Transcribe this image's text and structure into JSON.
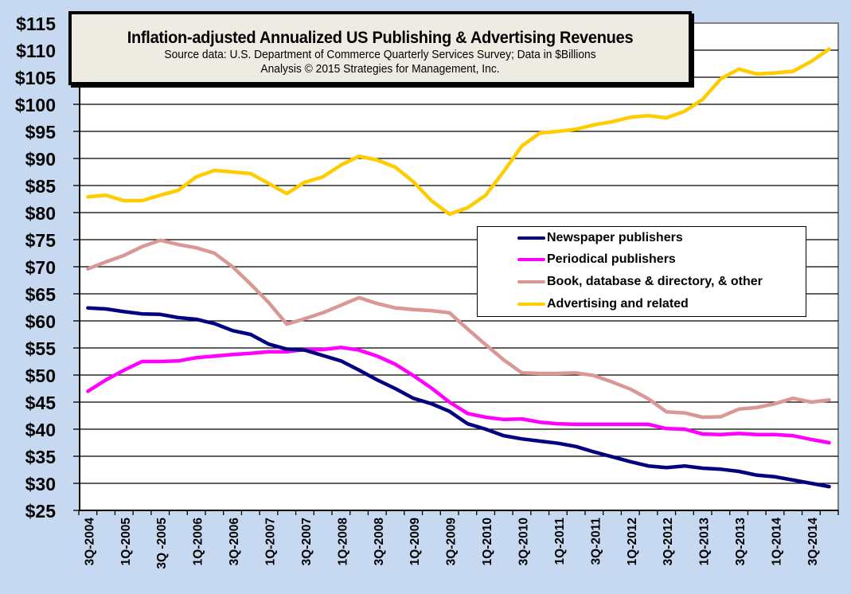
{
  "chart_data": {
    "type": "line",
    "title": "Inflation-adjusted Annualized US Publishing & Advertising Revenues",
    "subtitle": "Source data: U.S. Department of Commerce Quarterly Services Survey; Data in $Billions",
    "credit": "Analysis © 2015 Strategies for Management, Inc.",
    "xlabel": "",
    "ylabel": "",
    "ylim": [
      25,
      115
    ],
    "ytick_step": 5,
    "y_tick_labels": [
      "$115",
      "$110",
      "$105",
      "$100",
      "$95",
      "$90",
      "$85",
      "$80",
      "$75",
      "$70",
      "$65",
      "$60",
      "$55",
      "$50",
      "$45",
      "$40",
      "$35",
      "$30",
      "$25"
    ],
    "x": [
      "3Q-2004",
      "4Q-2004",
      "1Q-2005",
      "2Q-2005",
      "3Q-2005",
      "4Q-2005",
      "1Q-2006",
      "2Q-2006",
      "3Q-2006",
      "4Q-2006",
      "1Q-2007",
      "2Q-2007",
      "3Q-2007",
      "4Q-2007",
      "1Q-2008",
      "2Q-2008",
      "3Q-2008",
      "4Q-2008",
      "1Q-2009",
      "2Q-2009",
      "3Q-2009",
      "4Q-2009",
      "1Q-2010",
      "2Q-2010",
      "3Q-2010",
      "4Q-2010",
      "1Q-2011",
      "2Q-2011",
      "3Q-2011",
      "4Q-2011",
      "1Q-2012",
      "2Q-2012",
      "3Q-2012",
      "4Q-2012",
      "1Q-2013",
      "2Q-2013",
      "3Q-2013",
      "4Q-2013",
      "1Q-2014",
      "2Q-2014",
      "3Q-2014",
      "4Q-2014"
    ],
    "x_tick_labels": [
      "3Q-2004",
      "1Q-2005",
      "3Q -2005",
      "1Q-2006",
      "3Q-2006",
      "1Q-2007",
      "3Q-2007",
      "1Q-2008",
      "3Q-2008",
      "1Q-2009",
      "3Q-2009",
      "1Q-2010",
      "3Q-2010",
      "1Q-2011",
      "3Q-2011",
      "1Q-2012",
      "3Q-2012",
      "1Q-2013",
      "3Q-2013",
      "1Q-2014",
      "3Q-2014"
    ],
    "grid": true,
    "legend_position": "center-right",
    "series": [
      {
        "name": "Newspaper publishers",
        "color": "#000080",
        "values": [
          62.4,
          62.2,
          61.7,
          61.3,
          61.2,
          60.6,
          60.3,
          59.5,
          58.2,
          57.5,
          55.7,
          54.8,
          54.6,
          53.6,
          52.6,
          50.9,
          49.1,
          47.5,
          45.7,
          44.7,
          43.3,
          41.0,
          40.0,
          38.8,
          38.2,
          37.8,
          37.4,
          36.8,
          35.8,
          34.9,
          34.0,
          33.2,
          32.9,
          33.2,
          32.8,
          32.6,
          32.2,
          31.5,
          31.2,
          30.6,
          30.0,
          29.4
        ]
      },
      {
        "name": "Periodical publishers",
        "color": "#FF00FF",
        "values": [
          47.0,
          49.1,
          50.9,
          52.5,
          52.5,
          52.6,
          53.2,
          53.5,
          53.8,
          54.0,
          54.3,
          54.3,
          54.7,
          54.7,
          55.1,
          54.6,
          53.5,
          52.0,
          49.9,
          47.6,
          45.0,
          42.9,
          42.2,
          41.8,
          41.9,
          41.3,
          41.0,
          40.9,
          40.9,
          40.9,
          40.9,
          40.9,
          40.1,
          40.0,
          39.1,
          39.0,
          39.2,
          39.0,
          39.0,
          38.8,
          38.1,
          37.5
        ]
      },
      {
        "name": "Book, database & directory, & other",
        "color": "#D99795",
        "values": [
          69.6,
          70.9,
          72.1,
          73.7,
          74.9,
          74.1,
          73.5,
          72.5,
          70.0,
          66.8,
          63.4,
          59.4,
          60.4,
          61.5,
          62.9,
          64.3,
          63.2,
          62.4,
          62.1,
          61.9,
          61.5,
          58.5,
          55.6,
          52.8,
          50.4,
          50.3,
          50.3,
          50.4,
          49.9,
          48.7,
          47.4,
          45.6,
          43.2,
          43.0,
          42.2,
          42.3,
          43.7,
          44.0,
          44.7,
          45.7,
          45.0,
          45.4
        ]
      },
      {
        "name": "Advertising and related",
        "color": "#FFCC00",
        "values": [
          82.9,
          83.2,
          82.2,
          82.2,
          83.2,
          84.1,
          86.6,
          87.8,
          87.5,
          87.2,
          85.4,
          83.5,
          85.6,
          86.6,
          88.8,
          90.4,
          89.7,
          88.4,
          85.7,
          82.2,
          79.7,
          80.9,
          83.2,
          87.6,
          92.3,
          94.7,
          95.0,
          95.4,
          96.2,
          96.8,
          97.6,
          97.9,
          97.5,
          98.7,
          100.9,
          104.7,
          106.5,
          105.6,
          105.8,
          106.1,
          107.9,
          110.2
        ]
      }
    ]
  }
}
